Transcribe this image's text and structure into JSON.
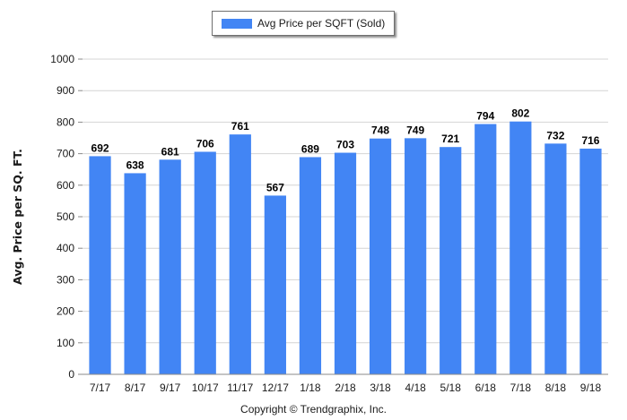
{
  "chart_data": {
    "type": "bar",
    "categories": [
      "7/17",
      "8/17",
      "9/17",
      "10/17",
      "11/17",
      "12/17",
      "1/18",
      "2/18",
      "3/18",
      "4/18",
      "5/18",
      "6/18",
      "7/18",
      "8/18",
      "9/18"
    ],
    "series": [
      {
        "name": "Avg Price per SQFT (Sold)",
        "values": [
          692,
          638,
          681,
          706,
          761,
          567,
          689,
          703,
          748,
          749,
          721,
          794,
          802,
          732,
          716
        ]
      }
    ],
    "ylabel": "Avg. Price per SQ. FT.",
    "ylim": [
      0,
      1000
    ],
    "yticks": [
      0,
      100,
      200,
      300,
      400,
      500,
      600,
      700,
      800,
      900,
      1000
    ],
    "grid": true,
    "legend_position": "top-center",
    "data_labels": true,
    "bar_color": "#4285f4"
  },
  "footer": {
    "copyright": "Copyright © Trendgraphix, Inc."
  }
}
